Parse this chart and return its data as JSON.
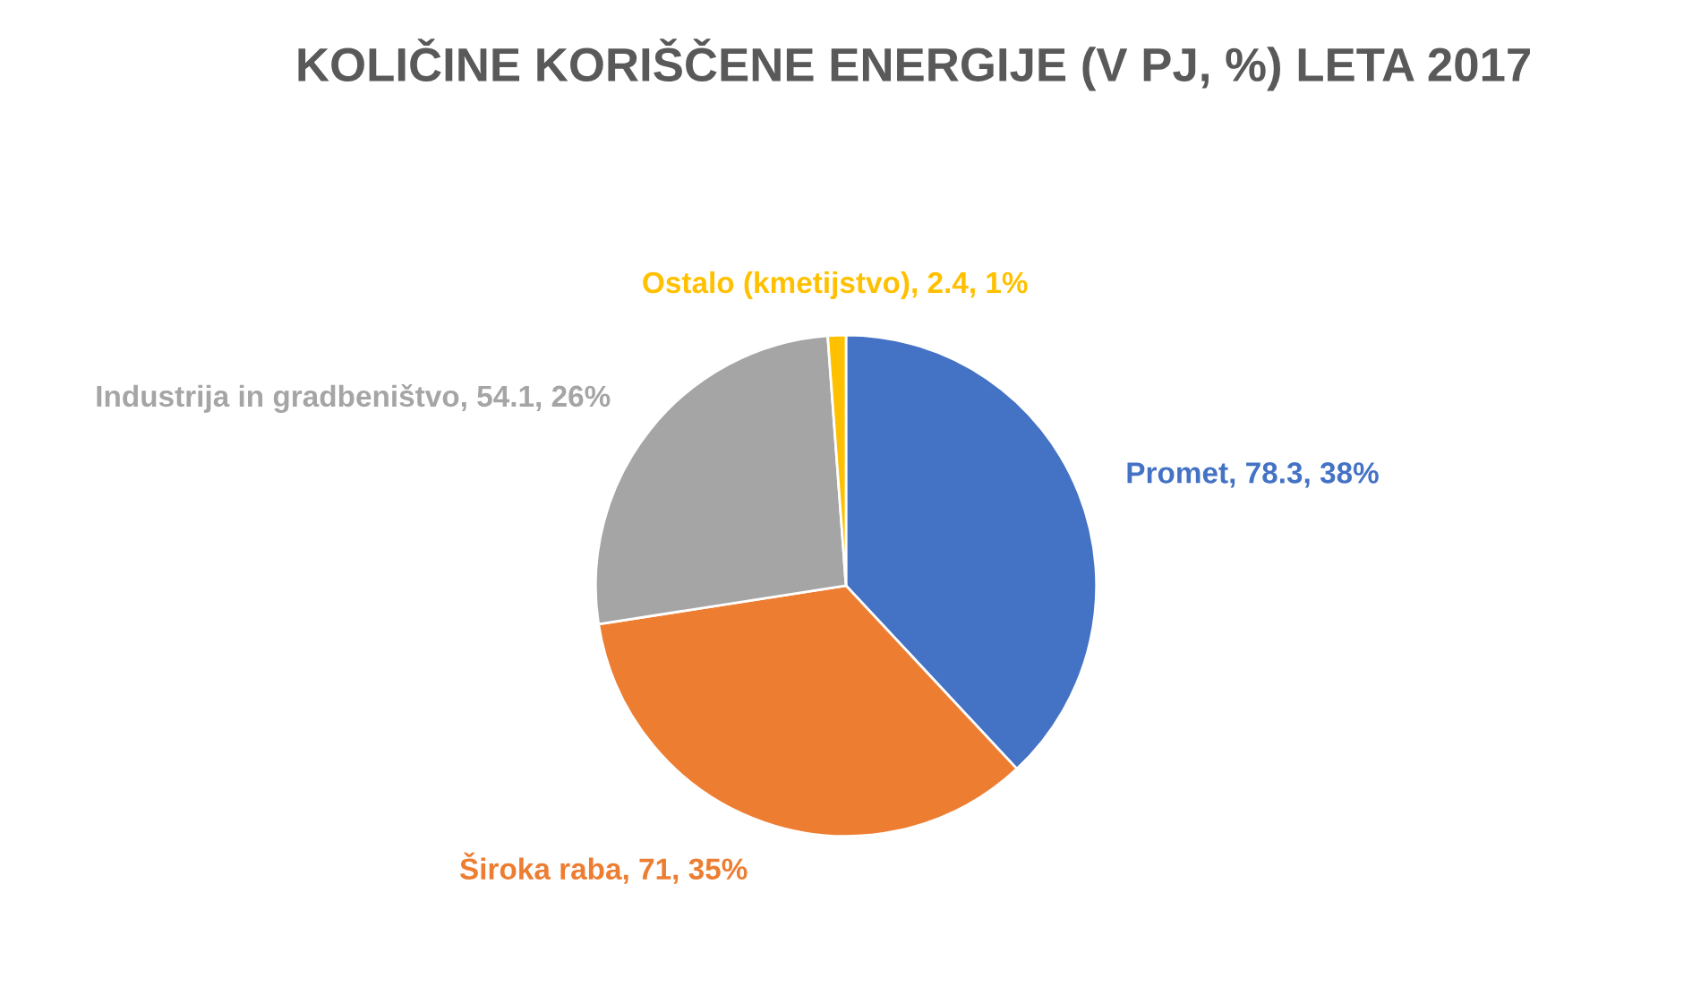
{
  "chart_data": {
    "type": "pie",
    "title": "KOLIČINE KORIŠČENE ENERGIJE (V PJ, %) LETA 2017",
    "categories": [
      "Promet",
      "Široka raba",
      "Industrija in gradbeništvo",
      "Ostalo (kmetijstvo)"
    ],
    "values": [
      78.3,
      71,
      54.1,
      2.4
    ],
    "value_labels": [
      "78.3, 38%",
      "71, 35%",
      "54.1, 26%",
      "2.4, 1%"
    ],
    "colors": [
      "#4472c4",
      "#ed7d31",
      "#a5a5a5",
      "#ffc000"
    ],
    "legend": false
  }
}
